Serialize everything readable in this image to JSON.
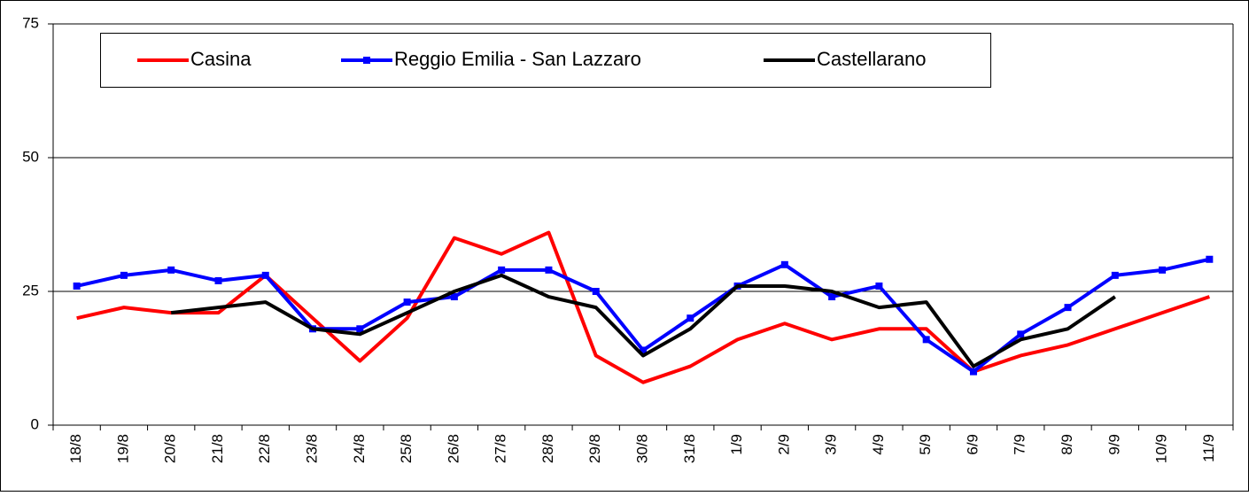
{
  "chart_data": {
    "type": "line",
    "categories": [
      "18/8",
      "19/8",
      "20/8",
      "21/8",
      "22/8",
      "23/8",
      "24/8",
      "25/8",
      "26/8",
      "27/8",
      "28/8",
      "29/8",
      "30/8",
      "31/8",
      "1/9",
      "2/9",
      "3/9",
      "4/9",
      "5/9",
      "6/9",
      "7/9",
      "8/9",
      "9/9",
      "10/9",
      "11/9"
    ],
    "series": [
      {
        "name": "Casina",
        "color": "#ff0000",
        "values": [
          20,
          22,
          21,
          21,
          28,
          20,
          12,
          20,
          35,
          32,
          36,
          13,
          8,
          11,
          16,
          19,
          16,
          18,
          18,
          10,
          13,
          15,
          18,
          21,
          24
        ]
      },
      {
        "name": "Reggio Emilia - San Lazzaro",
        "color": "#0000ff",
        "marker": "square",
        "values": [
          26,
          28,
          29,
          27,
          28,
          18,
          18,
          23,
          24,
          29,
          29,
          25,
          14,
          20,
          26,
          30,
          24,
          26,
          16,
          10,
          17,
          22,
          28,
          29,
          31
        ]
      },
      {
        "name": "Castellarano",
        "color": "#000000",
        "values": [
          null,
          null,
          21,
          22,
          23,
          18,
          17,
          21,
          25,
          28,
          24,
          22,
          13,
          18,
          26,
          26,
          25,
          22,
          23,
          11,
          16,
          18,
          24,
          null,
          null
        ]
      }
    ],
    "ylim": [
      0,
      75
    ],
    "yticks": [
      0,
      25,
      50,
      75
    ],
    "grid": true,
    "legend": "top"
  }
}
